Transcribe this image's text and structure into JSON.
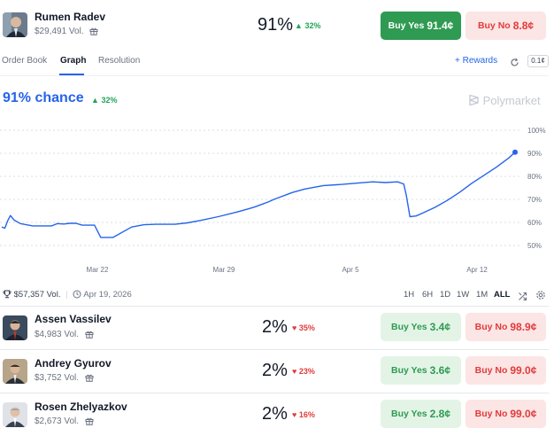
{
  "header": {
    "name": "Rumen Radev",
    "volume": "$29,491 Vol.",
    "percent": "91%",
    "change": "32%",
    "buy_yes_label": "Buy Yes",
    "buy_yes_price": "91.4¢",
    "buy_no_label": "Buy No",
    "buy_no_price": "8.8¢"
  },
  "tabs": [
    {
      "label": "Order Book"
    },
    {
      "label": "Graph"
    },
    {
      "label": "Resolution"
    }
  ],
  "toolbar": {
    "rewards_label": "Rewards",
    "spread_label": "0.1¢"
  },
  "chance": {
    "value": "91% chance",
    "change": "32%"
  },
  "watermark": "Polymarket",
  "footer": {
    "total_volume": "$57,357 Vol.",
    "end_date": "Apr 19, 2026",
    "ranges": [
      "1H",
      "6H",
      "1D",
      "1W",
      "1M",
      "ALL"
    ],
    "active_range": "ALL"
  },
  "chart_data": {
    "type": "line",
    "x_tick_labels": [
      "Mar 22",
      "Mar 29",
      "Apr 5",
      "Apr 12"
    ],
    "y_tick_labels": [
      "100%",
      "90%",
      "80%",
      "70%",
      "60%",
      "50%"
    ],
    "ylim": [
      45,
      100
    ],
    "grid": true,
    "x": [
      0,
      0.5,
      1,
      1.4,
      2,
      3,
      5,
      6,
      8,
      8.2,
      8.5,
      9,
      10,
      11,
      12,
      13,
      15,
      16,
      18,
      21,
      23,
      25,
      28,
      30,
      32,
      35,
      38,
      40,
      41,
      42,
      43,
      43.5,
      44,
      45,
      46,
      47,
      49,
      52,
      55,
      58,
      60,
      62,
      64,
      65,
      65.4,
      66,
      67,
      68,
      70,
      72,
      74,
      76,
      78,
      80,
      82,
      83
    ],
    "y": [
      58,
      57.5,
      61,
      63,
      61,
      59.5,
      58.5,
      58.5,
      58.5,
      58.6,
      59,
      59.5,
      59.3,
      59.6,
      59.6,
      58.8,
      58.8,
      53.5,
      53.5,
      58,
      59,
      59.2,
      59.2,
      59.8,
      60.8,
      62.5,
      64.5,
      66,
      66.8,
      67.8,
      68.8,
      69.4,
      70,
      71,
      72,
      73,
      74.5,
      76,
      76.5,
      77.2,
      77.6,
      77.3,
      77.6,
      76.7,
      72,
      62.5,
      62.8,
      64,
      66.5,
      69.5,
      73,
      77,
      80.5,
      84,
      88,
      90.5
    ]
  },
  "outcomes": [
    {
      "name": "Assen Vassilev",
      "volume": "$4,983 Vol.",
      "percent": "2%",
      "change": "35%",
      "yes_label": "Buy Yes",
      "yes_price": "3.4¢",
      "no_label": "Buy No",
      "no_price": "98.9¢"
    },
    {
      "name": "Andrey Gyurov",
      "volume": "$3,752 Vol.",
      "percent": "2%",
      "change": "23%",
      "yes_label": "Buy Yes",
      "yes_price": "3.6¢",
      "no_label": "Buy No",
      "no_price": "99.0¢"
    },
    {
      "name": "Rosen Zhelyazkov",
      "volume": "$2,673 Vol.",
      "percent": "2%",
      "change": "16%",
      "yes_label": "Buy Yes",
      "yes_price": "2.8¢",
      "no_label": "Buy No",
      "no_price": "99.0¢"
    }
  ],
  "colors": {
    "accent": "#2563eb",
    "yes": "#2f9a52",
    "no": "#e23b3b",
    "up": "#22a559"
  }
}
